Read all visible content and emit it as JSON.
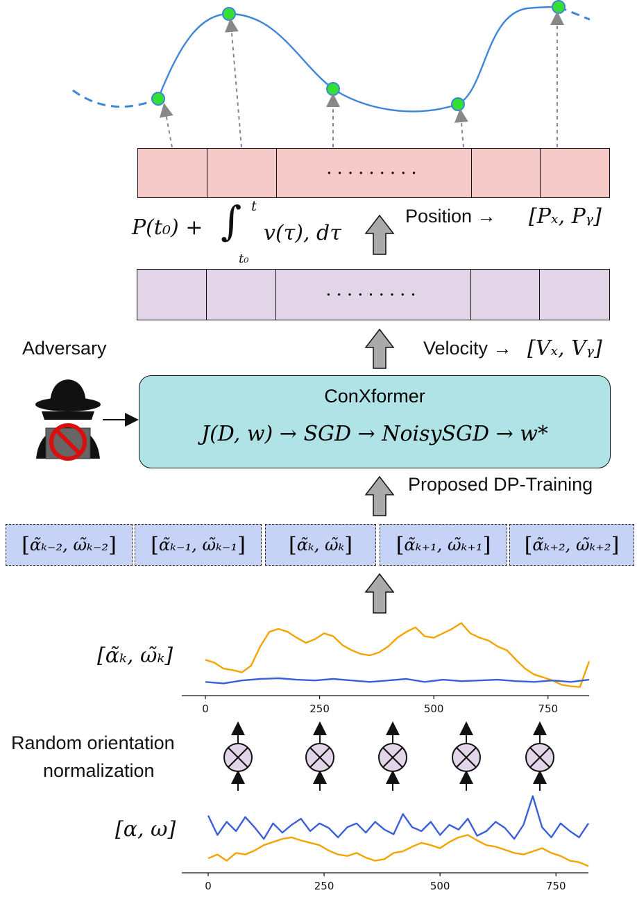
{
  "labels": {
    "position": "Position →",
    "position_vec": "[Pₓ, Pᵧ]",
    "integral_lhs": "P(t₀) +",
    "integral_rhs": "v(τ), dτ",
    "integral_upper": "t",
    "integral_lower": "t₀",
    "velocity": "Velocity →",
    "velocity_vec": "[Vₓ, Vᵧ]",
    "adversary": "Adversary",
    "proposed": "Proposed DP-Training",
    "random_orientation_1": "Random orientation",
    "random_orientation_2": "normalization",
    "normalized_signal": "[α̃ₖ, ω̃ₖ]",
    "raw_signal": "[α, ω]",
    "sequence_ellipsis": "........."
  },
  "model": {
    "title": "ConXformer",
    "formula": "J(D, w) → SGD → NoisySGD → w*"
  },
  "tokens": [
    {
      "alpha": "α̃ₖ₋₂",
      "omega": "ω̃ₖ₋₂"
    },
    {
      "alpha": "α̃ₖ₋₁",
      "omega": "ω̃ₖ₋₁"
    },
    {
      "alpha": "α̃ₖ",
      "omega": "ω̃ₖ"
    },
    {
      "alpha": "α̃ₖ₊₁",
      "omega": "ω̃ₖ₊₁"
    },
    {
      "alpha": "α̃ₖ₊₂",
      "omega": "ω̃ₖ₊₂"
    }
  ],
  "chart_data": [
    {
      "type": "line",
      "name": "normalized",
      "xlim": [
        0,
        840
      ],
      "x_ticks": [
        0,
        250,
        500,
        750
      ],
      "ylim": [
        0,
        1
      ],
      "series": [
        {
          "color": "#f5a300",
          "x": [
            0,
            20,
            40,
            60,
            80,
            100,
            120,
            140,
            160,
            180,
            200,
            220,
            240,
            260,
            280,
            300,
            320,
            340,
            360,
            380,
            400,
            420,
            440,
            460,
            480,
            500,
            520,
            540,
            560,
            580,
            600,
            620,
            640,
            660,
            680,
            700,
            720,
            740,
            760,
            780,
            800,
            820,
            840
          ],
          "y": [
            0.42,
            0.38,
            0.3,
            0.28,
            0.25,
            0.34,
            0.6,
            0.8,
            0.84,
            0.8,
            0.72,
            0.65,
            0.7,
            0.78,
            0.74,
            0.62,
            0.55,
            0.5,
            0.48,
            0.52,
            0.6,
            0.72,
            0.8,
            0.86,
            0.74,
            0.72,
            0.78,
            0.84,
            0.92,
            0.78,
            0.72,
            0.68,
            0.6,
            0.55,
            0.42,
            0.3,
            0.22,
            0.18,
            0.14,
            0.08,
            0.06,
            0.05,
            0.4
          ]
        },
        {
          "color": "#3a5fd9",
          "x": [
            0,
            40,
            80,
            120,
            160,
            200,
            240,
            280,
            320,
            360,
            400,
            440,
            480,
            520,
            560,
            600,
            640,
            680,
            720,
            760,
            800,
            840
          ],
          "y": [
            0.12,
            0.1,
            0.14,
            0.16,
            0.17,
            0.15,
            0.14,
            0.16,
            0.14,
            0.12,
            0.14,
            0.16,
            0.12,
            0.15,
            0.13,
            0.14,
            0.15,
            0.13,
            0.12,
            0.14,
            0.12,
            0.15
          ]
        }
      ]
    },
    {
      "type": "line",
      "name": "raw",
      "xlim": [
        0,
        820
      ],
      "x_ticks": [
        0,
        250,
        500,
        750
      ],
      "ylim": [
        0,
        1
      ],
      "series": [
        {
          "color": "#3a5fd9",
          "x": [
            0,
            20,
            40,
            60,
            80,
            100,
            120,
            140,
            160,
            180,
            200,
            220,
            240,
            260,
            280,
            300,
            320,
            340,
            360,
            380,
            400,
            420,
            440,
            460,
            480,
            500,
            520,
            540,
            560,
            580,
            600,
            620,
            640,
            660,
            680,
            700,
            720,
            740,
            760,
            780,
            800,
            820
          ],
          "y": [
            0.7,
            0.45,
            0.62,
            0.5,
            0.68,
            0.55,
            0.4,
            0.6,
            0.48,
            0.58,
            0.66,
            0.5,
            0.6,
            0.54,
            0.42,
            0.55,
            0.6,
            0.48,
            0.62,
            0.52,
            0.46,
            0.72,
            0.55,
            0.5,
            0.62,
            0.45,
            0.58,
            0.52,
            0.66,
            0.44,
            0.5,
            0.62,
            0.54,
            0.4,
            0.58,
            0.95,
            0.55,
            0.42,
            0.6,
            0.5,
            0.42,
            0.6
          ]
        },
        {
          "color": "#f5a300",
          "x": [
            0,
            20,
            40,
            60,
            80,
            100,
            120,
            140,
            160,
            180,
            200,
            220,
            240,
            260,
            280,
            300,
            320,
            340,
            360,
            380,
            400,
            420,
            440,
            460,
            480,
            500,
            520,
            540,
            560,
            580,
            600,
            620,
            640,
            660,
            680,
            700,
            720,
            740,
            760,
            780,
            800,
            820
          ],
          "y": [
            0.15,
            0.2,
            0.12,
            0.22,
            0.2,
            0.25,
            0.32,
            0.36,
            0.4,
            0.42,
            0.38,
            0.35,
            0.32,
            0.25,
            0.2,
            0.18,
            0.22,
            0.16,
            0.12,
            0.14,
            0.22,
            0.24,
            0.3,
            0.35,
            0.32,
            0.28,
            0.36,
            0.42,
            0.45,
            0.38,
            0.32,
            0.3,
            0.26,
            0.22,
            0.2,
            0.24,
            0.28,
            0.22,
            0.18,
            0.12,
            0.1,
            0.05
          ]
        }
      ]
    }
  ]
}
